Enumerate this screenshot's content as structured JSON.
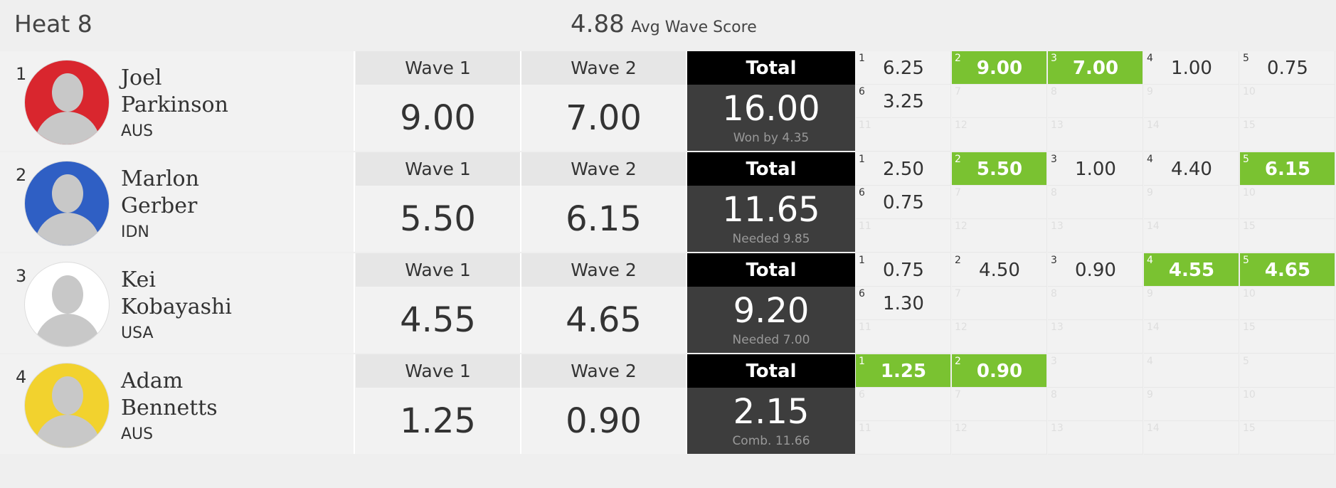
{
  "header": {
    "title": "Heat 8",
    "avg_score": "4.88",
    "avg_label": "Avg Wave Score"
  },
  "surfers": [
    {
      "rank": "1",
      "first_name": "Joel",
      "last_name": "Parkinson",
      "country": "AUS",
      "avatar_color": "#d9262e",
      "wave1_label": "Wave 1",
      "wave1": "9.00",
      "wave2_label": "Wave 2",
      "wave2": "7.00",
      "total_label": "Total",
      "total": "16.00",
      "note": "Won by 4.35",
      "waves": [
        {
          "n": "1",
          "score": "6.25"
        },
        {
          "n": "2",
          "score": "9.00",
          "best": true
        },
        {
          "n": "3",
          "score": "7.00",
          "best": true
        },
        {
          "n": "4",
          "score": "1.00"
        },
        {
          "n": "5",
          "score": "0.75"
        },
        {
          "n": "6",
          "score": "3.25"
        },
        {
          "n": "7"
        },
        {
          "n": "8"
        },
        {
          "n": "9"
        },
        {
          "n": "10"
        },
        {
          "n": "11"
        },
        {
          "n": "12"
        },
        {
          "n": "13"
        },
        {
          "n": "14"
        },
        {
          "n": "15"
        }
      ]
    },
    {
      "rank": "2",
      "first_name": "Marlon",
      "last_name": "Gerber",
      "country": "IDN",
      "avatar_color": "#2f5fc4",
      "wave1_label": "Wave 1",
      "wave1": "5.50",
      "wave2_label": "Wave 2",
      "wave2": "6.15",
      "total_label": "Total",
      "total": "11.65",
      "note": "Needed 9.85",
      "waves": [
        {
          "n": "1",
          "score": "2.50"
        },
        {
          "n": "2",
          "score": "5.50",
          "best": true
        },
        {
          "n": "3",
          "score": "1.00"
        },
        {
          "n": "4",
          "score": "4.40"
        },
        {
          "n": "5",
          "score": "6.15",
          "best": true
        },
        {
          "n": "6",
          "score": "0.75"
        },
        {
          "n": "7"
        },
        {
          "n": "8"
        },
        {
          "n": "9"
        },
        {
          "n": "10"
        },
        {
          "n": "11"
        },
        {
          "n": "12"
        },
        {
          "n": "13"
        },
        {
          "n": "14"
        },
        {
          "n": "15"
        }
      ]
    },
    {
      "rank": "3",
      "first_name": "Kei",
      "last_name": "Kobayashi",
      "country": "USA",
      "avatar_color": "#ffffff",
      "wave1_label": "Wave 1",
      "wave1": "4.55",
      "wave2_label": "Wave 2",
      "wave2": "4.65",
      "total_label": "Total",
      "total": "9.20",
      "note": "Needed 7.00",
      "waves": [
        {
          "n": "1",
          "score": "0.75"
        },
        {
          "n": "2",
          "score": "4.50"
        },
        {
          "n": "3",
          "score": "0.90"
        },
        {
          "n": "4",
          "score": "4.55",
          "best": true
        },
        {
          "n": "5",
          "score": "4.65",
          "best": true
        },
        {
          "n": "6",
          "score": "1.30"
        },
        {
          "n": "7"
        },
        {
          "n": "8"
        },
        {
          "n": "9"
        },
        {
          "n": "10"
        },
        {
          "n": "11"
        },
        {
          "n": "12"
        },
        {
          "n": "13"
        },
        {
          "n": "14"
        },
        {
          "n": "15"
        }
      ]
    },
    {
      "rank": "4",
      "first_name": "Adam",
      "last_name": "Bennetts",
      "country": "AUS",
      "avatar_color": "#f2d22e",
      "wave1_label": "Wave 1",
      "wave1": "1.25",
      "wave2_label": "Wave 2",
      "wave2": "0.90",
      "total_label": "Total",
      "total": "2.15",
      "note": "Comb. 11.66",
      "waves": [
        {
          "n": "1",
          "score": "1.25",
          "best": true
        },
        {
          "n": "2",
          "score": "0.90",
          "best": true
        },
        {
          "n": "3"
        },
        {
          "n": "4"
        },
        {
          "n": "5"
        },
        {
          "n": "6"
        },
        {
          "n": "7"
        },
        {
          "n": "8"
        },
        {
          "n": "9"
        },
        {
          "n": "10"
        },
        {
          "n": "11"
        },
        {
          "n": "12"
        },
        {
          "n": "13"
        },
        {
          "n": "14"
        },
        {
          "n": "15"
        }
      ]
    }
  ]
}
